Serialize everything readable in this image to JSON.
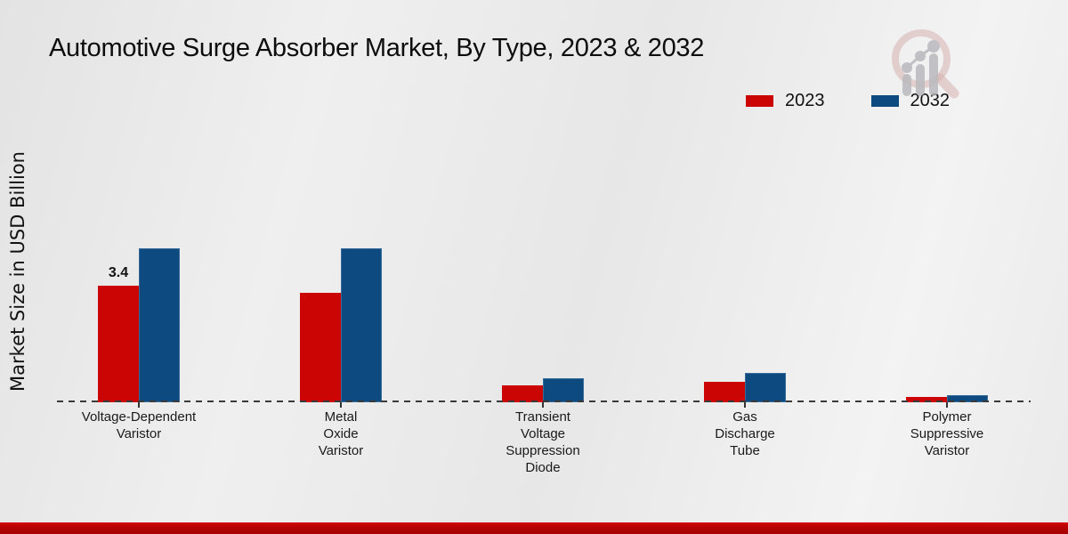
{
  "page": {
    "title": "Automotive Surge Absorber Market, By Type, 2023 & 2032",
    "y_axis_label": "Market Size in USD Billion"
  },
  "legend": {
    "items": [
      {
        "label": "2023",
        "color": "#cb0404"
      },
      {
        "label": "2032",
        "color": "#0d4a80"
      }
    ]
  },
  "colors": {
    "bar_2023": "#cb0404",
    "bar_2032": "#0d4a80",
    "axis_line": "#3a3a3a",
    "footer_band": "#b30202"
  },
  "chart_data": {
    "type": "bar",
    "title": "Automotive Surge Absorber Market, By Type, 2023 & 2032",
    "ylabel": "Market Size in USD Billion",
    "categories": [
      "Voltage-Dependent Varistor",
      "Metal Oxide Varistor",
      "Transient Voltage Suppression Diode",
      "Gas Discharge Tube",
      "Polymer Suppressive Varistor"
    ],
    "category_label_lines": [
      [
        "Voltage-Dependent",
        "Varistor"
      ],
      [
        "Metal",
        "Oxide",
        "Varistor"
      ],
      [
        "Transient",
        "Voltage",
        "Suppression",
        "Diode"
      ],
      [
        "Gas",
        "Discharge",
        "Tube"
      ],
      [
        "Polymer",
        "Suppressive",
        "Varistor"
      ]
    ],
    "series": [
      {
        "name": "2023",
        "color": "#cb0404",
        "values": [
          3.4,
          3.2,
          0.5,
          0.6,
          0.15
        ]
      },
      {
        "name": "2032",
        "color": "#0d4a80",
        "values": [
          4.5,
          4.5,
          0.7,
          0.85,
          0.2
        ]
      }
    ],
    "bar_labels": [
      {
        "series_index": 0,
        "category_index": 0,
        "text": "3.4"
      }
    ],
    "ylim": [
      0,
      5.2
    ],
    "grid": false,
    "baseline_style": "dashed",
    "legend_position": "top-right"
  },
  "watermark": {
    "name": "market-research-future-logo"
  }
}
